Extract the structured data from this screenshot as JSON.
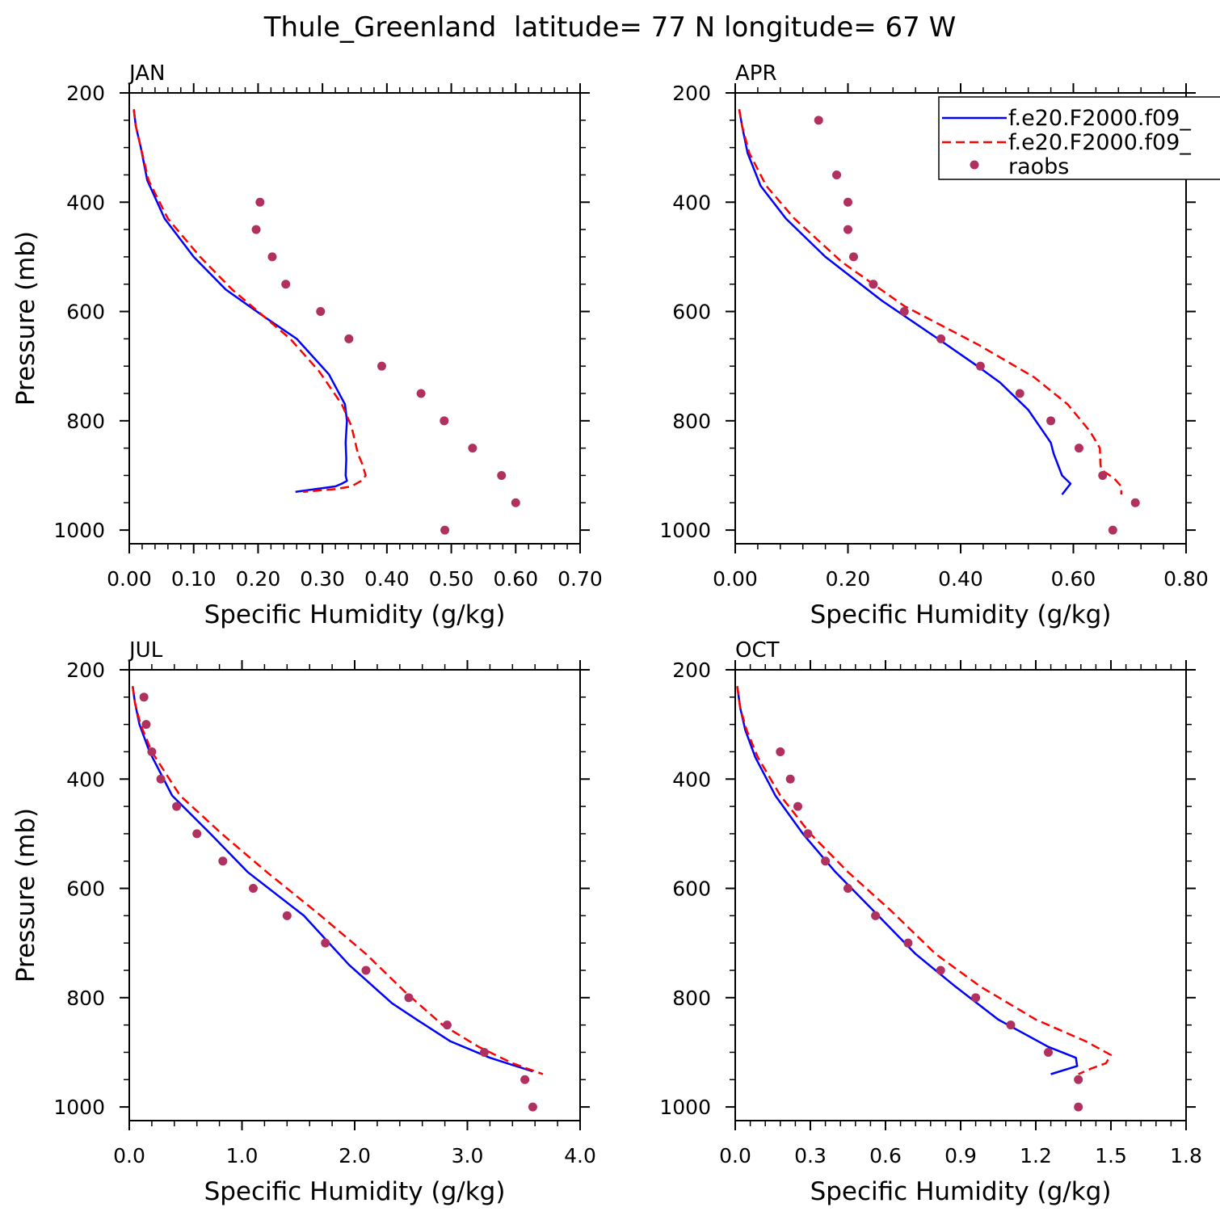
{
  "figure_title": "Thule_Greenland  latitude= 77 N longitude= 67 W",
  "legend": {
    "entries": [
      {
        "label": "f.e20.F2000.f09_",
        "color": "#0000ff",
        "style": "solid"
      },
      {
        "label": "f.e20.F2000.f09_",
        "color": "#ff0000",
        "style": "dashed"
      },
      {
        "label": "raobs",
        "color": "#b03060",
        "style": "dot"
      }
    ]
  },
  "chart_data": [
    {
      "type": "line",
      "title": "JAN",
      "xlabel": "Specific Humidity (g/kg)",
      "ylabel": "Pressure (mb)",
      "xlim": [
        0,
        0.7
      ],
      "ylim": [
        200,
        1025
      ],
      "y_inverted": true,
      "xticks": [
        "0.00",
        "0.10",
        "0.20",
        "0.30",
        "0.40",
        "0.50",
        "0.60",
        "0.70"
      ],
      "xtick_values": [
        0,
        0.1,
        0.2,
        0.3,
        0.4,
        0.5,
        0.6,
        0.7
      ],
      "yticks": [
        "200",
        "400",
        "600",
        "800",
        "1000"
      ],
      "ytick_values": [
        200,
        400,
        600,
        800,
        1000
      ],
      "series": [
        {
          "style": "solid",
          "color": "#0000ff",
          "x": [
            0.007,
            0.01,
            0.018,
            0.028,
            0.055,
            0.1,
            0.15,
            0.21,
            0.26,
            0.31,
            0.335,
            0.338,
            0.336,
            0.337,
            0.336,
            0.338,
            0.33,
            0.32,
            0.258
          ],
          "y": [
            230,
            260,
            300,
            360,
            430,
            500,
            560,
            610,
            650,
            715,
            770,
            800,
            840,
            870,
            900,
            910,
            915,
            920,
            930
          ]
        },
        {
          "style": "dashed",
          "color": "#ff0000",
          "x": [
            0.007,
            0.01,
            0.018,
            0.03,
            0.06,
            0.11,
            0.16,
            0.21,
            0.25,
            0.295,
            0.33,
            0.345,
            0.355,
            0.362,
            0.367,
            0.36,
            0.345,
            0.32,
            0.27
          ],
          "y": [
            230,
            260,
            300,
            360,
            430,
            500,
            560,
            610,
            650,
            710,
            770,
            810,
            860,
            880,
            900,
            910,
            920,
            925,
            930
          ]
        },
        {
          "style": "dot",
          "color": "#b03060",
          "x": [
            0.203,
            0.197,
            0.222,
            0.243,
            0.297,
            0.341,
            0.392,
            0.453,
            0.489,
            0.533,
            0.578,
            0.6,
            0.49
          ],
          "y": [
            400,
            450,
            500,
            550,
            600,
            650,
            700,
            750,
            800,
            850,
            900,
            950,
            1000
          ]
        }
      ]
    },
    {
      "type": "line",
      "title": "APR",
      "xlabel": "Specific Humidity (g/kg)",
      "ylabel": "",
      "xlim": [
        0,
        0.8
      ],
      "ylim": [
        200,
        1025
      ],
      "y_inverted": true,
      "xticks": [
        "0.00",
        "0.20",
        "0.40",
        "0.60",
        "0.80"
      ],
      "xtick_values": [
        0,
        0.2,
        0.4,
        0.6,
        0.8
      ],
      "yticks": [
        "200",
        "400",
        "600",
        "800",
        "1000"
      ],
      "ytick_values": [
        200,
        400,
        600,
        800,
        1000
      ],
      "series": [
        {
          "style": "solid",
          "color": "#0000ff",
          "x": [
            0.007,
            0.012,
            0.022,
            0.045,
            0.09,
            0.16,
            0.26,
            0.36,
            0.43,
            0.47,
            0.52,
            0.56,
            0.565,
            0.58,
            0.595,
            0.58
          ],
          "y": [
            230,
            260,
            310,
            370,
            430,
            500,
            580,
            650,
            700,
            730,
            780,
            840,
            860,
            900,
            915,
            935
          ]
        },
        {
          "style": "dashed",
          "color": "#ff0000",
          "x": [
            0.007,
            0.012,
            0.025,
            0.055,
            0.105,
            0.19,
            0.3,
            0.43,
            0.53,
            0.59,
            0.63,
            0.647,
            0.648,
            0.65,
            0.672,
            0.685,
            0.685
          ],
          "y": [
            230,
            260,
            310,
            370,
            430,
            510,
            590,
            660,
            720,
            770,
            820,
            850,
            880,
            890,
            905,
            920,
            935
          ]
        },
        {
          "style": "dot",
          "color": "#b03060",
          "x": [
            0.148,
            0.18,
            0.2,
            0.2,
            0.21,
            0.245,
            0.3,
            0.365,
            0.435,
            0.505,
            0.56,
            0.61,
            0.652,
            0.71,
            0.67
          ],
          "y": [
            250,
            350,
            400,
            450,
            500,
            550,
            600,
            650,
            700,
            750,
            800,
            850,
            900,
            950,
            1000
          ]
        }
      ]
    },
    {
      "type": "line",
      "title": "JUL",
      "xlabel": "Specific Humidity (g/kg)",
      "ylabel": "Pressure (mb)",
      "xlim": [
        0,
        4
      ],
      "ylim": [
        200,
        1025
      ],
      "y_inverted": true,
      "xticks": [
        "0.0",
        "1.0",
        "2.0",
        "3.0",
        "4.0"
      ],
      "xtick_values": [
        0,
        1,
        2,
        3,
        4
      ],
      "yticks": [
        "200",
        "400",
        "600",
        "800",
        "1000"
      ],
      "ytick_values": [
        200,
        400,
        600,
        800,
        1000
      ],
      "series": [
        {
          "style": "solid",
          "color": "#0000ff",
          "x": [
            0.03,
            0.05,
            0.09,
            0.18,
            0.38,
            0.72,
            1.05,
            1.55,
            1.95,
            2.33,
            2.55,
            2.85,
            3.2,
            3.58
          ],
          "y": [
            230,
            260,
            300,
            350,
            430,
            500,
            570,
            650,
            740,
            810,
            840,
            880,
            910,
            935
          ]
        },
        {
          "style": "dashed",
          "color": "#ff0000",
          "x": [
            0.03,
            0.05,
            0.1,
            0.2,
            0.45,
            0.82,
            1.22,
            1.7,
            2.1,
            2.45,
            2.78,
            3.1,
            3.4,
            3.67
          ],
          "y": [
            230,
            260,
            300,
            350,
            430,
            500,
            570,
            650,
            720,
            790,
            850,
            890,
            920,
            940
          ]
        },
        {
          "style": "dot",
          "color": "#b03060",
          "x": [
            0.13,
            0.15,
            0.2,
            0.28,
            0.42,
            0.6,
            0.83,
            1.1,
            1.4,
            1.74,
            2.1,
            2.48,
            2.82,
            3.15,
            3.51,
            3.58
          ],
          "y": [
            250,
            300,
            350,
            400,
            450,
            500,
            550,
            600,
            650,
            700,
            750,
            800,
            850,
            900,
            950,
            1000
          ]
        }
      ]
    },
    {
      "type": "line",
      "title": "OCT",
      "xlabel": "Specific Humidity (g/kg)",
      "ylabel": "",
      "xlim": [
        0,
        1.8
      ],
      "ylim": [
        200,
        1025
      ],
      "y_inverted": true,
      "xticks": [
        "0.0",
        "0.3",
        "0.6",
        "0.9",
        "1.2",
        "1.5",
        "1.8"
      ],
      "xtick_values": [
        0,
        0.3,
        0.6,
        0.9,
        1.2,
        1.5,
        1.8
      ],
      "yticks": [
        "200",
        "400",
        "600",
        "800",
        "1000"
      ],
      "ytick_values": [
        200,
        400,
        600,
        800,
        1000
      ],
      "series": [
        {
          "style": "solid",
          "color": "#0000ff",
          "x": [
            0.008,
            0.02,
            0.04,
            0.08,
            0.16,
            0.27,
            0.4,
            0.55,
            0.72,
            0.88,
            1.05,
            1.25,
            1.36,
            1.365,
            1.26
          ],
          "y": [
            230,
            270,
            310,
            360,
            430,
            500,
            570,
            640,
            720,
            780,
            840,
            890,
            910,
            925,
            940
          ]
        },
        {
          "style": "dashed",
          "color": "#ff0000",
          "x": [
            0.008,
            0.02,
            0.045,
            0.09,
            0.18,
            0.3,
            0.45,
            0.62,
            0.8,
            0.98,
            1.2,
            1.4,
            1.5,
            1.48,
            1.42,
            1.37
          ],
          "y": [
            230,
            270,
            310,
            360,
            430,
            500,
            570,
            640,
            720,
            780,
            840,
            880,
            905,
            920,
            930,
            940
          ]
        },
        {
          "style": "dot",
          "color": "#b03060",
          "x": [
            0.18,
            0.22,
            0.25,
            0.29,
            0.36,
            0.45,
            0.56,
            0.69,
            0.82,
            0.96,
            1.1,
            1.25,
            1.37,
            1.37
          ],
          "y": [
            350,
            400,
            450,
            500,
            550,
            600,
            650,
            700,
            750,
            800,
            850,
            900,
            950,
            1000
          ]
        }
      ]
    }
  ]
}
